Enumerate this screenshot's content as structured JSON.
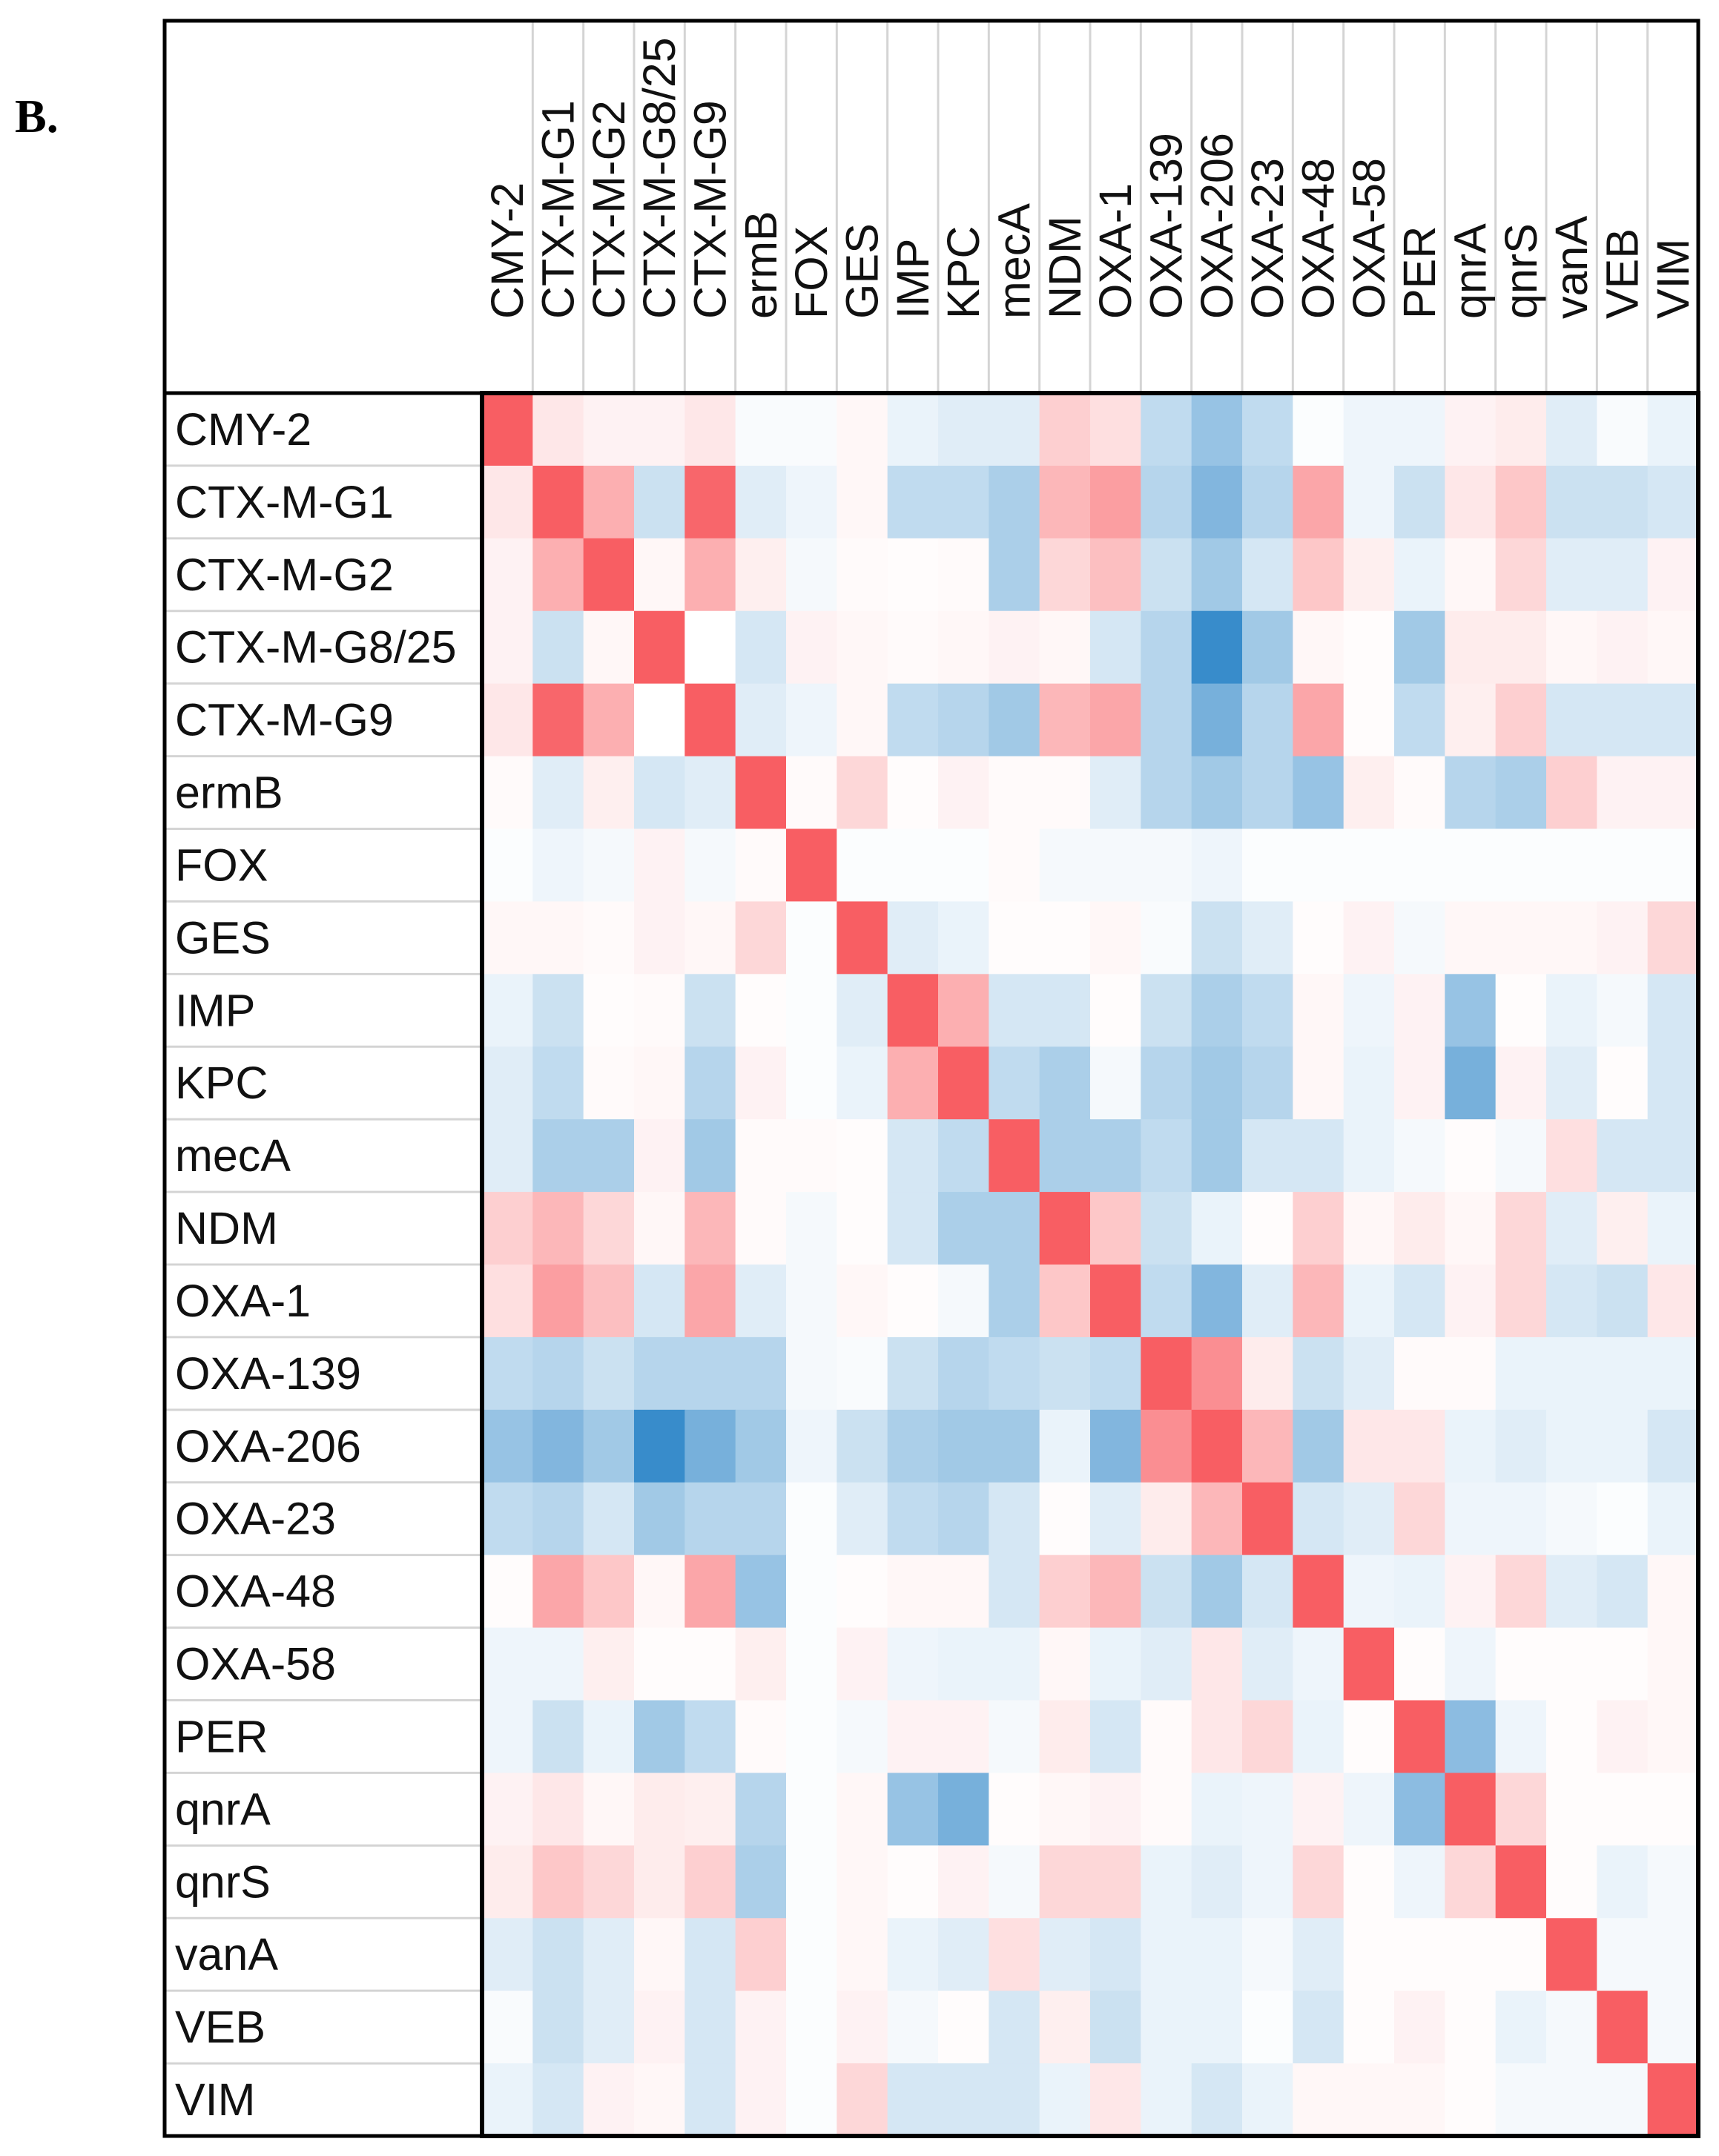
{
  "panel_label": "B.",
  "chart_data": {
    "type": "heatmap",
    "title": "",
    "color_scale": {
      "min": -1,
      "max": 1,
      "negative_color": "#2E86C8",
      "zero_color": "#FFFFFF",
      "positive_color": "#F85E63"
    },
    "row_labels": [
      "CMY-2",
      "CTX-M-G1",
      "CTX-M-G2",
      "CTX-M-G8/25",
      "CTX-M-G9",
      "ermB",
      "FOX",
      "GES",
      "IMP",
      "KPC",
      "mecA",
      "NDM",
      "OXA-1",
      "OXA-139",
      "OXA-206",
      "OXA-23",
      "OXA-48",
      "OXA-58",
      "PER",
      "qnrA",
      "qnrS",
      "vanA",
      "VEB",
      "VIM"
    ],
    "col_labels": [
      "CMY-2",
      "CTX-M-G1",
      "CTX-M-G2",
      "CTX-M-G8/25",
      "CTX-M-G9",
      "ermB",
      "FOX",
      "GES",
      "IMP",
      "KPC",
      "mecA",
      "NDM",
      "OXA-1",
      "OXA-139",
      "OXA-206",
      "OXA-23",
      "OXA-48",
      "OXA-58",
      "PER",
      "qnrA",
      "qnrS",
      "vanA",
      "VEB",
      "VIM"
    ],
    "values": [
      [
        1.0,
        0.15,
        0.08,
        0.08,
        0.15,
        -0.03,
        -0.03,
        0.05,
        -0.1,
        -0.15,
        -0.15,
        0.3,
        0.2,
        -0.3,
        -0.5,
        -0.3,
        -0.02,
        -0.08,
        -0.08,
        0.08,
        0.12,
        -0.15,
        -0.03,
        -0.1
      ],
      [
        0.15,
        1.0,
        0.5,
        -0.25,
        0.95,
        -0.15,
        -0.08,
        0.05,
        -0.3,
        -0.3,
        -0.4,
        0.45,
        0.6,
        -0.35,
        -0.6,
        -0.35,
        0.55,
        -0.08,
        -0.25,
        0.15,
        0.35,
        -0.25,
        -0.25,
        -0.2
      ],
      [
        0.08,
        0.5,
        1.0,
        0.05,
        0.5,
        0.1,
        -0.05,
        0.03,
        0.02,
        0.03,
        -0.4,
        0.25,
        0.4,
        -0.25,
        -0.45,
        -0.2,
        0.35,
        0.1,
        -0.1,
        0.05,
        0.25,
        -0.15,
        -0.15,
        0.08
      ],
      [
        0.08,
        -0.25,
        0.05,
        1.0,
        0.0,
        -0.2,
        0.08,
        0.05,
        0.03,
        0.05,
        0.08,
        0.05,
        -0.2,
        -0.35,
        -0.95,
        -0.45,
        0.05,
        0.02,
        -0.45,
        0.12,
        0.12,
        0.05,
        0.08,
        0.05
      ],
      [
        0.15,
        0.95,
        0.5,
        0.0,
        1.0,
        -0.15,
        -0.08,
        0.05,
        -0.3,
        -0.35,
        -0.45,
        0.45,
        0.55,
        -0.35,
        -0.65,
        -0.35,
        0.55,
        0.02,
        -0.3,
        0.1,
        0.3,
        -0.2,
        -0.2,
        -0.2
      ],
      [
        0.03,
        -0.15,
        0.1,
        -0.2,
        -0.15,
        1.0,
        0.03,
        0.25,
        0.02,
        0.08,
        0.03,
        0.03,
        -0.15,
        -0.35,
        -0.45,
        -0.35,
        -0.5,
        0.1,
        0.03,
        -0.35,
        -0.4,
        0.3,
        0.08,
        0.08
      ],
      [
        -0.02,
        -0.08,
        -0.05,
        0.08,
        -0.05,
        0.03,
        1.0,
        -0.02,
        -0.02,
        -0.02,
        0.03,
        -0.05,
        -0.05,
        -0.05,
        -0.08,
        -0.02,
        -0.02,
        -0.02,
        -0.02,
        -0.02,
        -0.02,
        -0.02,
        -0.02,
        -0.02
      ],
      [
        0.05,
        0.05,
        0.03,
        0.08,
        0.05,
        0.25,
        -0.02,
        1.0,
        -0.15,
        -0.1,
        0.02,
        0.02,
        0.05,
        -0.03,
        -0.25,
        -0.15,
        0.02,
        0.08,
        -0.05,
        0.05,
        0.05,
        0.05,
        0.08,
        0.25
      ],
      [
        -0.1,
        -0.25,
        0.02,
        0.03,
        -0.25,
        0.02,
        -0.02,
        -0.15,
        1.0,
        0.5,
        -0.2,
        -0.2,
        0.02,
        -0.25,
        -0.4,
        -0.3,
        0.05,
        -0.08,
        0.08,
        -0.5,
        0.02,
        -0.1,
        -0.05,
        -0.2
      ],
      [
        -0.15,
        -0.3,
        0.03,
        0.05,
        -0.35,
        0.08,
        -0.02,
        -0.1,
        0.5,
        1.0,
        -0.3,
        -0.4,
        -0.05,
        -0.35,
        -0.45,
        -0.35,
        0.05,
        -0.1,
        0.08,
        -0.65,
        0.08,
        -0.15,
        0.02,
        -0.2
      ],
      [
        -0.15,
        -0.4,
        -0.4,
        0.08,
        -0.45,
        0.03,
        0.03,
        0.02,
        -0.2,
        -0.3,
        1.0,
        -0.4,
        -0.4,
        -0.3,
        -0.45,
        -0.2,
        -0.2,
        -0.1,
        -0.05,
        0.02,
        -0.05,
        0.2,
        -0.2,
        -0.2
      ],
      [
        0.3,
        0.45,
        0.25,
        0.05,
        0.45,
        0.03,
        -0.05,
        0.02,
        -0.2,
        -0.4,
        -0.4,
        1.0,
        0.35,
        -0.25,
        -0.1,
        0.02,
        0.3,
        0.05,
        0.12,
        0.05,
        0.25,
        -0.15,
        0.1,
        -0.1
      ],
      [
        0.2,
        0.6,
        0.4,
        -0.2,
        0.55,
        -0.15,
        -0.05,
        0.05,
        0.02,
        -0.05,
        -0.4,
        0.35,
        1.0,
        -0.3,
        -0.6,
        -0.15,
        0.45,
        -0.1,
        -0.2,
        0.08,
        0.25,
        -0.2,
        -0.25,
        0.15
      ],
      [
        -0.3,
        -0.35,
        -0.25,
        -0.35,
        -0.35,
        -0.35,
        -0.05,
        -0.03,
        -0.25,
        -0.35,
        -0.3,
        -0.25,
        -0.3,
        1.0,
        0.7,
        0.12,
        -0.25,
        -0.15,
        0.03,
        0.03,
        -0.1,
        -0.1,
        -0.1,
        -0.1
      ],
      [
        -0.5,
        -0.6,
        -0.45,
        -0.95,
        -0.65,
        -0.45,
        -0.08,
        -0.25,
        -0.4,
        -0.45,
        -0.45,
        -0.1,
        -0.6,
        0.7,
        1.0,
        0.45,
        -0.45,
        0.15,
        0.15,
        -0.1,
        -0.15,
        -0.1,
        -0.1,
        -0.2
      ],
      [
        -0.3,
        -0.35,
        -0.2,
        -0.45,
        -0.35,
        -0.35,
        -0.02,
        -0.15,
        -0.3,
        -0.35,
        -0.2,
        0.02,
        -0.15,
        0.12,
        0.45,
        1.0,
        -0.2,
        -0.15,
        0.25,
        -0.08,
        -0.08,
        -0.05,
        -0.02,
        -0.1
      ],
      [
        0.02,
        0.55,
        0.35,
        0.05,
        0.55,
        -0.5,
        -0.02,
        0.02,
        0.05,
        0.05,
        -0.2,
        0.3,
        0.45,
        -0.25,
        -0.45,
        -0.2,
        1.0,
        -0.08,
        -0.1,
        0.08,
        0.25,
        -0.15,
        -0.2,
        0.05
      ],
      [
        -0.08,
        -0.08,
        0.1,
        0.02,
        0.02,
        0.1,
        -0.02,
        0.08,
        -0.08,
        -0.1,
        -0.1,
        0.05,
        -0.1,
        -0.15,
        0.15,
        -0.15,
        -0.08,
        1.0,
        0.02,
        -0.08,
        0.02,
        0.02,
        0.02,
        0.05
      ],
      [
        -0.08,
        -0.25,
        -0.1,
        -0.45,
        -0.3,
        0.03,
        -0.02,
        -0.05,
        0.08,
        0.08,
        -0.05,
        0.12,
        -0.2,
        0.03,
        0.15,
        0.25,
        -0.1,
        0.02,
        1.0,
        -0.55,
        -0.08,
        0.02,
        0.08,
        0.05
      ],
      [
        0.08,
        0.15,
        0.05,
        0.12,
        0.1,
        -0.35,
        -0.02,
        0.05,
        -0.5,
        -0.65,
        0.02,
        0.05,
        0.08,
        0.03,
        -0.1,
        -0.08,
        0.08,
        -0.08,
        -0.55,
        1.0,
        0.25,
        0.02,
        0.02,
        0.02
      ],
      [
        0.12,
        0.35,
        0.25,
        0.12,
        0.3,
        -0.4,
        -0.02,
        0.05,
        0.02,
        0.08,
        -0.05,
        0.25,
        0.25,
        -0.1,
        -0.15,
        -0.08,
        0.25,
        0.02,
        -0.08,
        0.25,
        1.0,
        0.02,
        -0.1,
        -0.05
      ],
      [
        -0.15,
        -0.25,
        -0.15,
        0.05,
        -0.2,
        0.3,
        -0.02,
        0.05,
        -0.1,
        -0.15,
        0.2,
        -0.15,
        -0.2,
        -0.1,
        -0.1,
        -0.05,
        -0.15,
        0.02,
        0.02,
        0.02,
        0.02,
        1.0,
        -0.05,
        -0.05
      ],
      [
        -0.03,
        -0.25,
        -0.15,
        0.08,
        -0.2,
        0.08,
        -0.02,
        0.08,
        -0.05,
        0.02,
        -0.2,
        0.1,
        -0.25,
        -0.1,
        -0.1,
        -0.02,
        -0.2,
        0.02,
        0.08,
        0.02,
        -0.1,
        -0.05,
        1.0,
        -0.05
      ],
      [
        -0.1,
        -0.2,
        0.08,
        0.05,
        -0.2,
        0.08,
        -0.02,
        0.25,
        -0.2,
        -0.2,
        -0.2,
        -0.1,
        0.15,
        -0.1,
        -0.2,
        -0.1,
        0.05,
        0.05,
        0.05,
        0.02,
        -0.05,
        -0.05,
        -0.05,
        1.0
      ]
    ]
  }
}
